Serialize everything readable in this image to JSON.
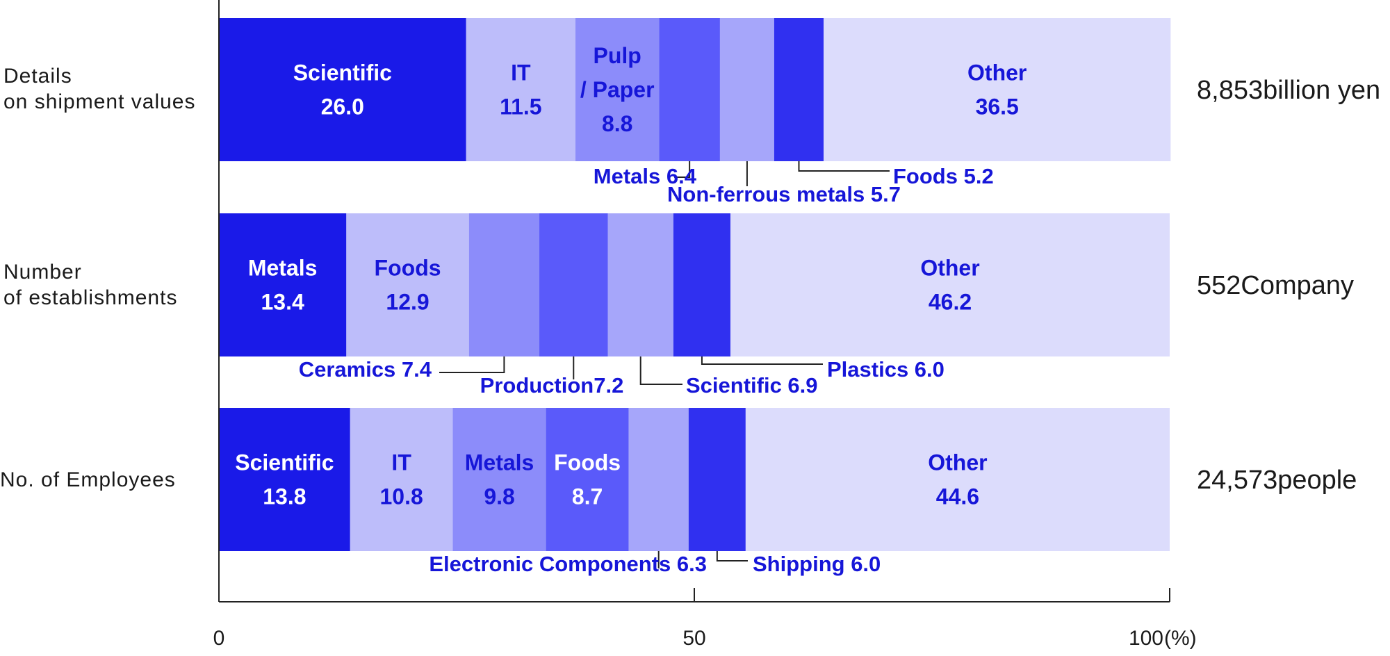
{
  "chart_data": {
    "type": "bar",
    "orientation": "horizontal",
    "stacked": "percent",
    "unit_symbol": "(%)",
    "xlim": [
      0,
      100
    ],
    "x_ticks": [
      "0",
      "50",
      "100"
    ],
    "rows": [
      {
        "label_lines": [
          "Details",
          "on shipment values"
        ],
        "total": "8,853billion yen",
        "segments": [
          {
            "name": "Scientific",
            "value": 26.0,
            "display": "26.0",
            "color": "#1a1ae8",
            "text_color": "#ffffff",
            "inside": true
          },
          {
            "name": "IT",
            "value": 11.5,
            "display": "11.5",
            "color": "#bdbdfa",
            "text_color": "#1616d8",
            "inside": true
          },
          {
            "name": "Pulp\n/ Paper",
            "value": 8.8,
            "display": "8.8",
            "color": "#8c8cfa",
            "text_color": "#1616d8",
            "inside": true
          },
          {
            "name": "Metals",
            "value": 6.4,
            "display": "6.4",
            "color": "#5a5afa",
            "inside": false,
            "callout": "Metals 6.4"
          },
          {
            "name": "Non-ferrous metals",
            "value": 5.7,
            "display": "5.7",
            "color": "#a6a6fa",
            "inside": false,
            "callout": "Non-ferrous metals 5.7"
          },
          {
            "name": "Foods",
            "value": 5.2,
            "display": "5.2",
            "color": "#3030f0",
            "inside": false,
            "callout": "Foods 5.2"
          },
          {
            "name": "Other",
            "value": 36.5,
            "display": "36.5",
            "color": "#dcdcfc",
            "text_color": "#1616d8",
            "inside": true
          }
        ]
      },
      {
        "label_lines": [
          "Number",
          "of establishments"
        ],
        "total": "552Company",
        "segments": [
          {
            "name": "Metals",
            "value": 13.4,
            "display": "13.4",
            "color": "#1a1ae8",
            "text_color": "#ffffff",
            "inside": true
          },
          {
            "name": "Foods",
            "value": 12.9,
            "display": "12.9",
            "color": "#bdbdfa",
            "text_color": "#1616d8",
            "inside": true
          },
          {
            "name": "Ceramics",
            "value": 7.4,
            "display": "7.4",
            "color": "#8c8cfa",
            "inside": false,
            "callout": "Ceramics 7.4"
          },
          {
            "name": "Production",
            "value": 7.2,
            "display": "7.2",
            "color": "#5a5afa",
            "inside": false,
            "callout": "Production7.2"
          },
          {
            "name": "Scientific",
            "value": 6.9,
            "display": "6.9",
            "color": "#a6a6fa",
            "inside": false,
            "callout": "Scientific 6.9"
          },
          {
            "name": "Plastics",
            "value": 6.0,
            "display": "6.0",
            "color": "#3030f0",
            "inside": false,
            "callout": "Plastics 6.0"
          },
          {
            "name": "Other",
            "value": 46.2,
            "display": "46.2",
            "color": "#dcdcfc",
            "text_color": "#1616d8",
            "inside": true
          }
        ]
      },
      {
        "label_lines": [
          "No. of Employees"
        ],
        "total": "24,573people",
        "segments": [
          {
            "name": "Scientific",
            "value": 13.8,
            "display": "13.8",
            "color": "#1a1ae8",
            "text_color": "#ffffff",
            "inside": true
          },
          {
            "name": "IT",
            "value": 10.8,
            "display": "10.8",
            "color": "#bdbdfa",
            "text_color": "#1616d8",
            "inside": true
          },
          {
            "name": "Metals",
            "value": 9.8,
            "display": "9.8",
            "color": "#8c8cfa",
            "text_color": "#1616d8",
            "inside": true
          },
          {
            "name": "Foods",
            "value": 8.7,
            "display": "8.7",
            "color": "#5a5afa",
            "text_color": "#ffffff",
            "inside": true
          },
          {
            "name": "Electronic Components",
            "value": 6.3,
            "display": "6.3",
            "color": "#a6a6fa",
            "inside": false,
            "callout": "Electronic Components  6.3"
          },
          {
            "name": "Shipping",
            "value": 6.0,
            "display": "6.0",
            "color": "#3030f0",
            "inside": false,
            "callout": "Shipping 6.0"
          },
          {
            "name": "Other",
            "value": 44.6,
            "display": "44.6",
            "color": "#dcdcfc",
            "text_color": "#1616d8",
            "inside": true
          }
        ]
      }
    ]
  }
}
